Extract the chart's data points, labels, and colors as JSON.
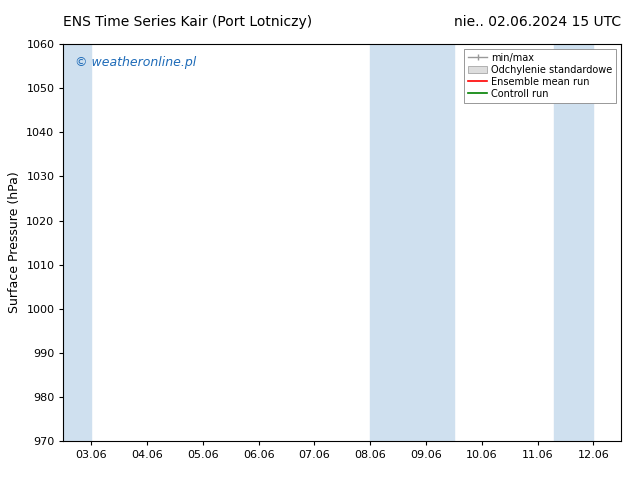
{
  "title_left": "ENS Time Series Kair (Port Lotniczy)",
  "title_right": "nie.. 02.06.2024 15 UTC",
  "ylabel": "Surface Pressure (hPa)",
  "ylim": [
    970,
    1060
  ],
  "yticks": [
    970,
    980,
    990,
    1000,
    1010,
    1020,
    1030,
    1040,
    1050,
    1060
  ],
  "xtick_labels": [
    "03.06",
    "04.06",
    "05.06",
    "06.06",
    "07.06",
    "08.06",
    "09.06",
    "10.06",
    "11.06",
    "12.06"
  ],
  "xtick_positions": [
    0,
    1,
    2,
    3,
    4,
    5,
    6,
    7,
    8,
    9
  ],
  "xlim": [
    -0.5,
    9.5
  ],
  "shaded_bands": [
    {
      "x_start": -0.5,
      "x_end": 0.0
    },
    {
      "x_start": 5.0,
      "x_end": 6.5
    },
    {
      "x_start": 8.3,
      "x_end": 9.0
    }
  ],
  "shaded_color": "#cfe0ef",
  "watermark_text": "© weatheronline.pl",
  "watermark_color": "#1e6bb8",
  "legend_labels": [
    "min/max",
    "Odchylenie standardowe",
    "Ensemble mean run",
    "Controll run"
  ],
  "legend_colors": [
    "#aaaaaa",
    "#cccccc",
    "red",
    "green"
  ],
  "bg_color": "#ffffff",
  "title_fontsize": 10,
  "tick_fontsize": 8,
  "ylabel_fontsize": 9,
  "watermark_fontsize": 9,
  "legend_fontsize": 7
}
